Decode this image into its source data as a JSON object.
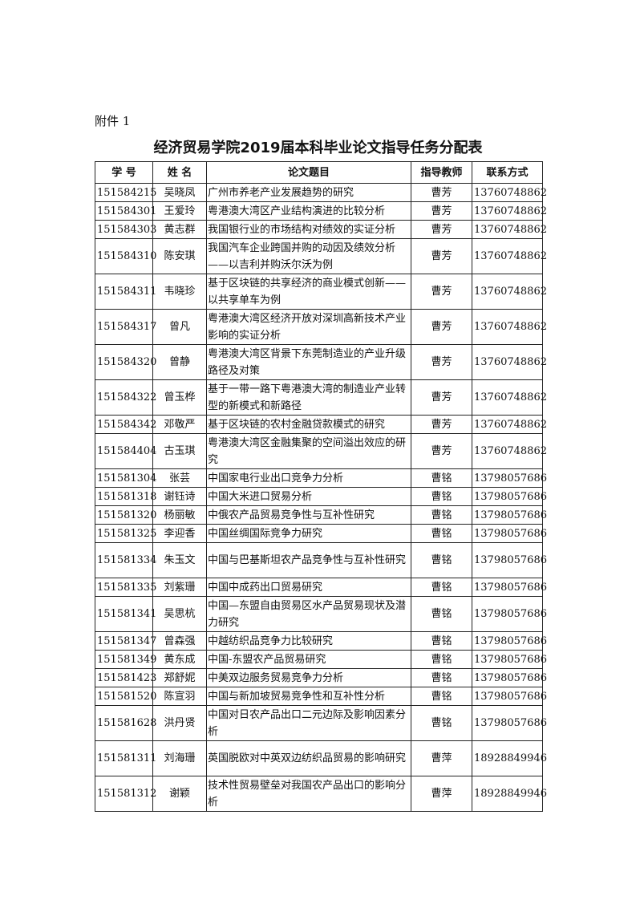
{
  "attachment_label": "附件 1",
  "title": "经济贸易学院2019届本科毕业论文指导任务分配表",
  "table": {
    "headers": [
      "学 号",
      "姓 名",
      "论文题目",
      "指导教师",
      "联系方式"
    ],
    "rows": [
      {
        "id": "151584215",
        "name": "吴晓凤",
        "topic": "广州市养老产业发展趋势的研究",
        "advisor": "曹芳",
        "phone": "13760748862",
        "lines": 1
      },
      {
        "id": "151584301",
        "name": "王爱玲",
        "topic": "粤港澳大湾区产业结构演进的比较分析",
        "advisor": "曹芳",
        "phone": "13760748862",
        "lines": 1
      },
      {
        "id": "151584303",
        "name": "黄志群",
        "topic": "我国银行业的市场结构对绩效的实证分析",
        "advisor": "曹芳",
        "phone": "13760748862",
        "lines": 1
      },
      {
        "id": "151584310",
        "name": "陈安琪",
        "topic": "我国汽车企业跨国并购的动因及绩效分析——以吉利并购沃尔沃为例",
        "advisor": "曹芳",
        "phone": "13760748862",
        "lines": 2
      },
      {
        "id": "151584311",
        "name": "韦晓珍",
        "topic": "基于区块链的共享经济的商业模式创新——以共享单车为例",
        "advisor": "曹芳",
        "phone": "13760748862",
        "lines": 2
      },
      {
        "id": "151584317",
        "name": "曾凡",
        "topic": "粤港澳大湾区经济开放对深圳高新技术产业影响的实证分析",
        "advisor": "曹芳",
        "phone": "13760748862",
        "lines": 2
      },
      {
        "id": "151584320",
        "name": "曾静",
        "topic": "粤港澳大湾区背景下东莞制造业的产业升级路径及对策",
        "advisor": "曹芳",
        "phone": "13760748862",
        "lines": 2
      },
      {
        "id": "151584322",
        "name": "曾玉桦",
        "topic": "基于一带一路下粤港澳大湾的制造业产业转型的新模式和新路径",
        "advisor": "曹芳",
        "phone": "13760748862",
        "lines": 2
      },
      {
        "id": "151584342",
        "name": "邓敬严",
        "topic": "基于区块链的农村金融贷款模式的研究",
        "advisor": "曹芳",
        "phone": "13760748862",
        "lines": 1
      },
      {
        "id": "151584404",
        "name": "古玉琪",
        "topic": "粤港澳大湾区金融集聚的空间溢出效应的研究",
        "advisor": "曹芳",
        "phone": "13760748862",
        "lines": 2
      },
      {
        "id": "151581304",
        "name": "张芸",
        "topic": "中国家电行业出口竞争力分析",
        "advisor": "曹铭",
        "phone": "13798057686",
        "lines": 1
      },
      {
        "id": "151581318",
        "name": "谢钰诗",
        "topic": "中国大米进口贸易分析",
        "advisor": "曹铭",
        "phone": "13798057686",
        "lines": 1
      },
      {
        "id": "151581320",
        "name": "杨丽敏",
        "topic": "中俄农产品贸易竞争性与互补性研究",
        "advisor": "曹铭",
        "phone": "13798057686",
        "lines": 1
      },
      {
        "id": "151581325",
        "name": "李迎香",
        "topic": "中国丝绸国际竞争力研究",
        "advisor": "曹铭",
        "phone": "13798057686",
        "lines": 1
      },
      {
        "id": "151581334",
        "name": "朱玉文",
        "topic": "中国与巴基斯坦农产品竞争性与互补性研究",
        "advisor": "曹铭",
        "phone": "13798057686",
        "lines": 2
      },
      {
        "id": "151581335",
        "name": "刘紫珊",
        "topic": "中国中成药出口贸易研究",
        "advisor": "曹铭",
        "phone": "13798057686",
        "lines": 1
      },
      {
        "id": "151581341",
        "name": "吴思杭",
        "topic": "中国—东盟自由贸易区水产品贸易现状及潜力研究",
        "advisor": "曹铭",
        "phone": "13798057686",
        "lines": 2
      },
      {
        "id": "151581347",
        "name": "曾森强",
        "topic": "中越纺织品竞争力比较研究",
        "advisor": "曹铭",
        "phone": "13798057686",
        "lines": 1
      },
      {
        "id": "151581349",
        "name": "黄东成",
        "topic": "中国-东盟农产品贸易研究",
        "advisor": "曹铭",
        "phone": "13798057686",
        "lines": 1
      },
      {
        "id": "151581423",
        "name": "郑舒妮",
        "topic": "中美双边服务贸易竞争力分析",
        "advisor": "曹铭",
        "phone": "13798057686",
        "lines": 1
      },
      {
        "id": "151581520",
        "name": "陈宣羽",
        "topic": "中国与新加坡贸易竞争性和互补性分析",
        "advisor": "曹铭",
        "phone": "13798057686",
        "lines": 1
      },
      {
        "id": "151581628",
        "name": "洪丹贤",
        "topic": "中国对日农产品出口二元边际及影响因素分析",
        "advisor": "曹铭",
        "phone": "13798057686",
        "lines": 2
      },
      {
        "id": "151581311",
        "name": "刘海珊",
        "topic": "英国脱欧对中英双边纺织品贸易的影响研究",
        "advisor": "曹萍",
        "phone": "18928849946",
        "lines": 2
      },
      {
        "id": "151581312",
        "name": "谢颖",
        "topic": "技术性贸易壁垒对我国农产品出口的影响分析",
        "advisor": "曹萍",
        "phone": "18928849946",
        "lines": 2
      }
    ]
  }
}
